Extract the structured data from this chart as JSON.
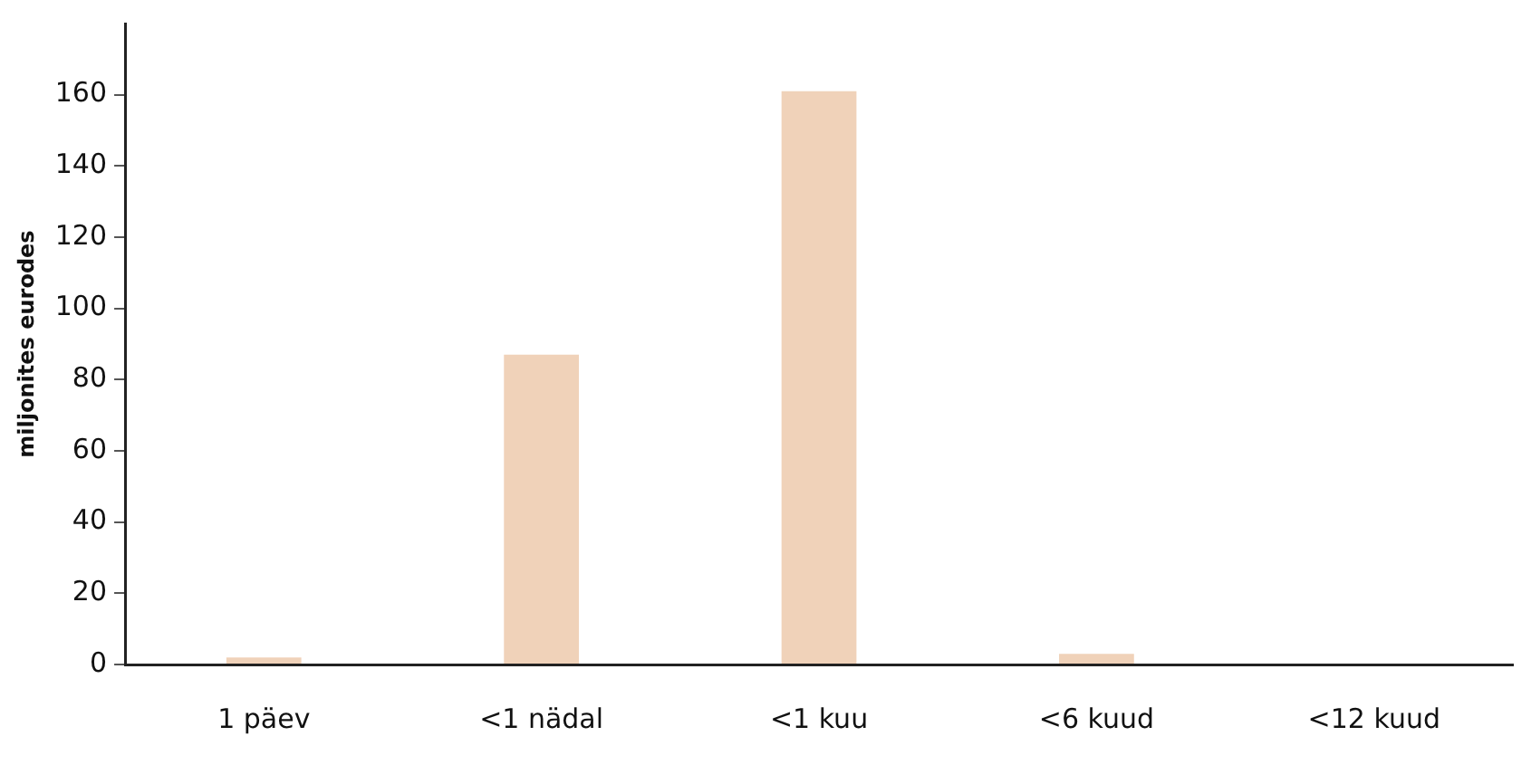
{
  "chart_data": {
    "type": "bar",
    "ylabel": "miljonites eurodes",
    "categories": [
      "1 päev",
      "<1 nädal",
      "<1 kuu",
      "<6 kuud",
      "<12 kuud"
    ],
    "values": [
      2,
      87,
      161,
      3,
      0
    ],
    "color": "#f0d2b9",
    "ylim": [
      0,
      180
    ],
    "yticks": [
      0,
      20,
      40,
      60,
      80,
      100,
      120,
      140,
      160
    ],
    "grid": false,
    "legend": false
  }
}
